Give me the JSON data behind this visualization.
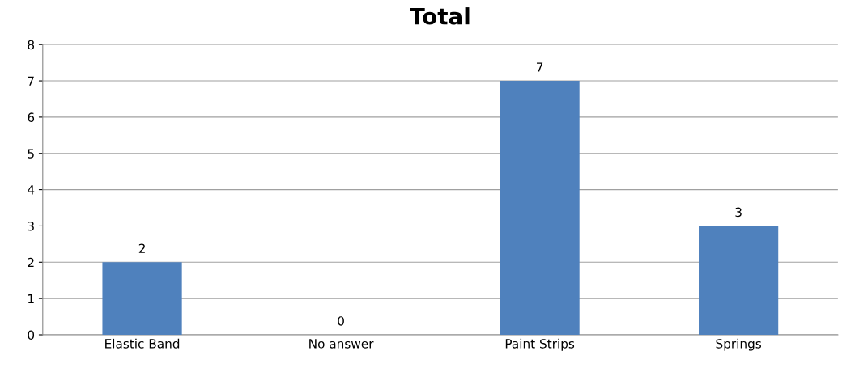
{
  "chart_data": {
    "type": "bar",
    "title": "Total",
    "categories": [
      "Elastic Band",
      "No answer",
      "Paint Strips",
      "Springs"
    ],
    "values": [
      2,
      0,
      7,
      3
    ],
    "color": "#4f81bd",
    "ylim": [
      0,
      8
    ],
    "yticks": [
      0,
      1,
      2,
      3,
      4,
      5,
      6,
      7,
      8
    ],
    "grid": "y",
    "data_labels": true
  }
}
